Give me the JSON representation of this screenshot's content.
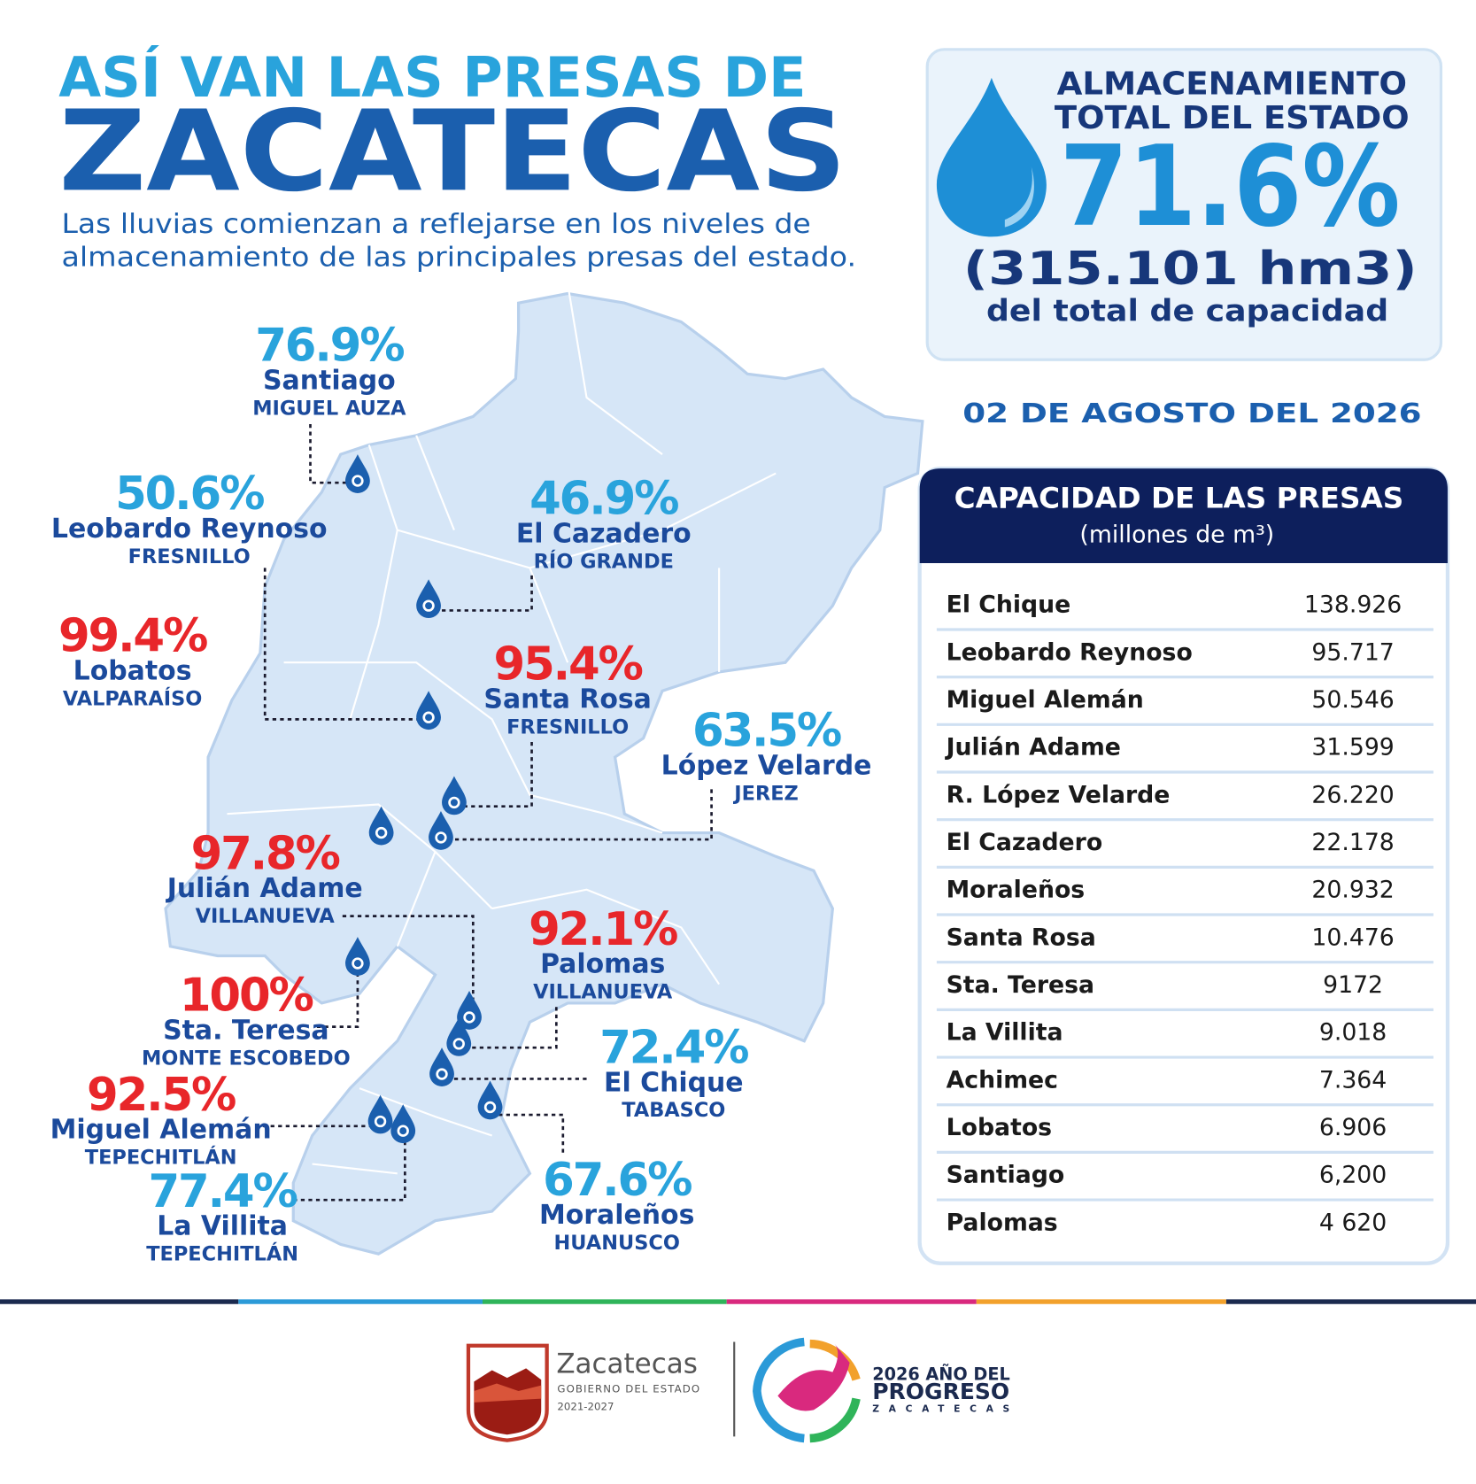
{
  "header": {
    "title_line1": "ASÍ VAN LAS PRESAS DE",
    "title_line2": "ZACATECAS",
    "subtitle_lines": [
      "Las lluvias comienzan a reflejarse en los niveles de",
      "almacenamiento de las principales presas del estado."
    ]
  },
  "total": {
    "label_lines": [
      "ALMACENAMIENTO",
      "TOTAL DEL ESTADO"
    ],
    "percent": "71.6%",
    "volume": "(315.101 hm3)",
    "note": "del total de capacidad"
  },
  "date": "02 DE AGOSTO DEL 2026",
  "dams": [
    {
      "percent": "76.9%",
      "name": "Santiago",
      "municipality": "MIGUEL AUZA",
      "color": "#29a3dc"
    },
    {
      "percent": "50.6%",
      "name": "Leobardo Reynoso",
      "municipality": "FRESNILLO",
      "color": "#29a3dc"
    },
    {
      "percent": "46.9%",
      "name": "El Cazadero",
      "municipality": "RÍO GRANDE",
      "color": "#29a3dc"
    },
    {
      "percent": "99.4%",
      "name": "Lobatos",
      "municipality": "VALPARAÍSO",
      "color": "#e8262a"
    },
    {
      "percent": "95.4%",
      "name": "Santa Rosa",
      "municipality": "FRESNILLO",
      "color": "#e8262a"
    },
    {
      "percent": "63.5%",
      "name": "López Velarde",
      "municipality": "JEREZ",
      "color": "#29a3dc"
    },
    {
      "percent": "97.8%",
      "name": "Julián Adame",
      "municipality": "VILLANUEVA",
      "color": "#e8262a"
    },
    {
      "percent": "92.1%",
      "name": "Palomas",
      "municipality": "VILLANUEVA",
      "color": "#e8262a"
    },
    {
      "percent": "100%",
      "name": "Sta. Teresa",
      "municipality": "MONTE ESCOBEDO",
      "color": "#e8262a"
    },
    {
      "percent": "72.4%",
      "name": "El Chique",
      "municipality": "TABASCO",
      "color": "#29a3dc"
    },
    {
      "percent": "92.5%",
      "name": "Miguel Alemán",
      "municipality": "TEPECHITLÁN",
      "color": "#e8262a"
    },
    {
      "percent": "77.4%",
      "name": "La Villita",
      "municipality": "TEPECHITLÁN",
      "color": "#29a3dc"
    },
    {
      "percent": "67.6%",
      "name": "Moraleños",
      "municipality": "HUANUSCO",
      "color": "#29a3dc"
    }
  ],
  "table": {
    "title": "CAPACIDAD DE LAS PRESAS",
    "unit": "(millones de m³)",
    "rows": [
      [
        "El Chique",
        "138.926"
      ],
      [
        "Leobardo Reynoso",
        "95.717"
      ],
      [
        "Miguel Alemán",
        "50.546"
      ],
      [
        "Julián Adame",
        "31.599"
      ],
      [
        "R. López Velarde",
        "26.220"
      ],
      [
        "El Cazadero",
        "22.178"
      ],
      [
        "Moraleños",
        "20.932"
      ],
      [
        "Santa Rosa",
        "10.476"
      ],
      [
        "Sta. Teresa",
        "9172"
      ],
      [
        "La Villita",
        "9.018"
      ],
      [
        "Achimec",
        "7.364"
      ],
      [
        "Lobatos",
        "6.906"
      ],
      [
        "Santiago",
        "6,200"
      ],
      [
        "Palomas",
        "4 620"
      ]
    ]
  },
  "footer": {
    "gov_name": "Zacatecas",
    "gov_sub": "GOBIERNO DEL ESTADO",
    "gov_years": "2021-2027",
    "motto_line1": "2026 AÑO DEL",
    "motto_line2": "PROGRESO",
    "motto_line3": "ZACATECAS"
  }
}
